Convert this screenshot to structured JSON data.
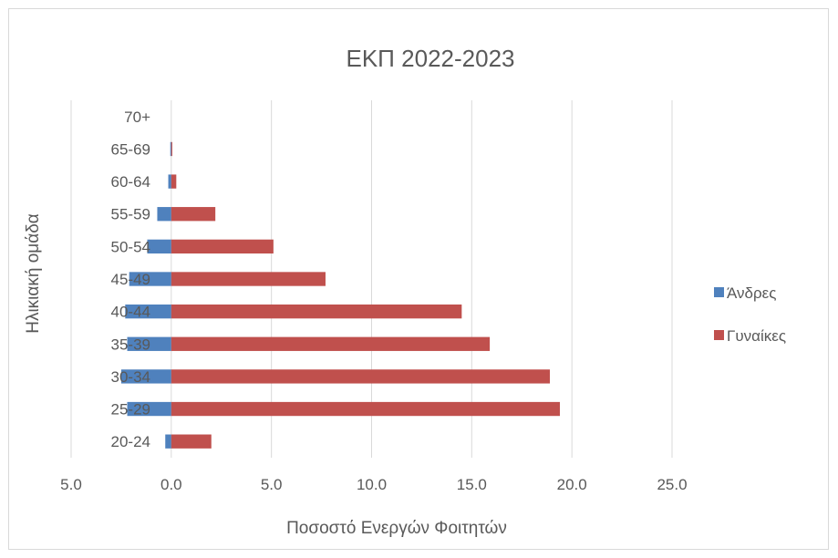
{
  "chart_data": {
    "type": "bar",
    "orientation": "horizontal",
    "title": "ΕΚΠ 2022-2023",
    "xlabel": "Ποσοστό Ενεργών Φοιτητών",
    "ylabel": "Ηλικιακή ομάδα",
    "categories": [
      "20-24",
      "25-29",
      "30-34",
      "35-39",
      "40-44",
      "45-49",
      "50-54",
      "55-59",
      "60-64",
      "65-69",
      "70+"
    ],
    "series": [
      {
        "name": "Άνδρες",
        "color": "#4f81bd",
        "values": [
          -0.3,
          -2.2,
          -2.5,
          -2.2,
          -2.3,
          -2.1,
          -1.2,
          -0.7,
          -0.15,
          -0.05,
          0
        ]
      },
      {
        "name": "Γυναίκες",
        "color": "#c0504d",
        "values": [
          2.0,
          19.4,
          18.9,
          15.9,
          14.5,
          7.7,
          5.1,
          2.2,
          0.25,
          0.05,
          0
        ]
      }
    ],
    "xlim": [
      -5,
      25
    ],
    "xticks": [
      -5,
      0,
      5,
      10,
      15,
      20,
      25
    ],
    "xtick_labels": [
      "5.0",
      "0.0",
      "5.0",
      "10.0",
      "15.0",
      "20.0",
      "25.0"
    ],
    "grid": true,
    "legend_position": "right"
  }
}
